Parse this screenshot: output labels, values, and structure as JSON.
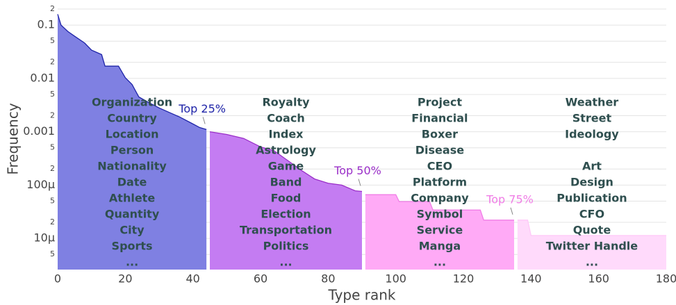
{
  "chart_data": {
    "type": "area",
    "x_label": "Type rank",
    "y_label": "Frequency",
    "log_y": true,
    "grid": true,
    "xlim": [
      0,
      180
    ],
    "xticks": [
      0,
      20,
      40,
      60,
      80,
      100,
      120,
      140,
      160,
      180
    ],
    "ylim": [
      2.6e-06,
      0.2
    ],
    "yticks": [
      {
        "value": 0.2,
        "label": "2"
      },
      0.1,
      {
        "value": 0.05,
        "label": "5"
      },
      {
        "value": 0.02,
        "label": "2"
      },
      0.01,
      {
        "value": 0.005,
        "label": "5"
      },
      {
        "value": 0.002,
        "label": "2"
      },
      0.001,
      {
        "value": 0.0005,
        "label": "5"
      },
      {
        "value": 0.0002,
        "label": "2"
      },
      {
        "value": 0.0001,
        "label": "100μ"
      },
      {
        "value": 5e-05,
        "label": "5"
      },
      {
        "value": 2e-05,
        "label": "2"
      },
      {
        "value": 1e-05,
        "label": "10μ"
      },
      {
        "value": 5e-06,
        "label": "5"
      }
    ],
    "series": [
      {
        "color": "#1f24a8",
        "fill": "#7f80e2",
        "label": "Top 25%",
        "x": [
          0,
          1,
          3,
          5,
          8,
          10,
          13,
          14,
          18,
          20,
          22,
          24,
          27,
          30,
          33,
          36,
          40,
          42,
          44
        ],
        "values": [
          0.16,
          0.1,
          0.076,
          0.062,
          0.046,
          0.034,
          0.028,
          0.017,
          0.017,
          0.0103,
          0.0077,
          0.0045,
          0.0035,
          0.0028,
          0.0023,
          0.0019,
          0.0014,
          0.0012,
          0.0011
        ],
        "words": [
          "Organization",
          "Country",
          "Location",
          "Person",
          "Nationality",
          "Date",
          "Athlete",
          "Quantity",
          "City",
          "Sports",
          "..."
        ]
      },
      {
        "color": "#9a2fc8",
        "fill": "#c47cf2",
        "label": "Top 50%",
        "x": [
          45,
          50,
          55,
          60,
          64,
          68,
          72,
          76,
          80,
          84,
          88,
          90
        ],
        "values": [
          0.001,
          0.00089,
          0.00075,
          0.00052,
          0.00044,
          0.00029,
          0.00019,
          0.00013,
          0.000108,
          0.0001,
          7.8e-05,
          7.6e-05
        ],
        "words": [
          "Royalty",
          "Coach",
          "Index",
          "Astrology",
          "Game",
          "Band",
          "Food",
          "Election",
          "Transportation",
          "Politics",
          "..."
        ]
      },
      {
        "color": "#f07de6",
        "fill": "#ffaaf6",
        "label": "Top 75%",
        "x": [
          91,
          100,
          101,
          110,
          111,
          125,
          126,
          135
        ],
        "values": [
          6.6e-05,
          6.6e-05,
          4.9e-05,
          4.9e-05,
          3.4e-05,
          3.4e-05,
          2.2e-05,
          2.2e-05
        ],
        "words": [
          "Project",
          "Financial",
          "Boxer",
          "Disease",
          "CEO",
          "Platform",
          "Company",
          "Symbol",
          "Service",
          "Manga",
          "..."
        ]
      },
      {
        "color": "#ffc8f8",
        "fill": "#ffdafb",
        "x": [
          136,
          139,
          140,
          180
        ],
        "values": [
          2.2e-05,
          2.2e-05,
          1.13e-05,
          1.13e-05
        ],
        "words": [
          "Weather",
          "Street",
          "Ideology",
          null,
          "Art",
          "Design",
          "Publication",
          "CFO",
          "Quote",
          "Twitter Handle",
          "..."
        ]
      }
    ]
  }
}
